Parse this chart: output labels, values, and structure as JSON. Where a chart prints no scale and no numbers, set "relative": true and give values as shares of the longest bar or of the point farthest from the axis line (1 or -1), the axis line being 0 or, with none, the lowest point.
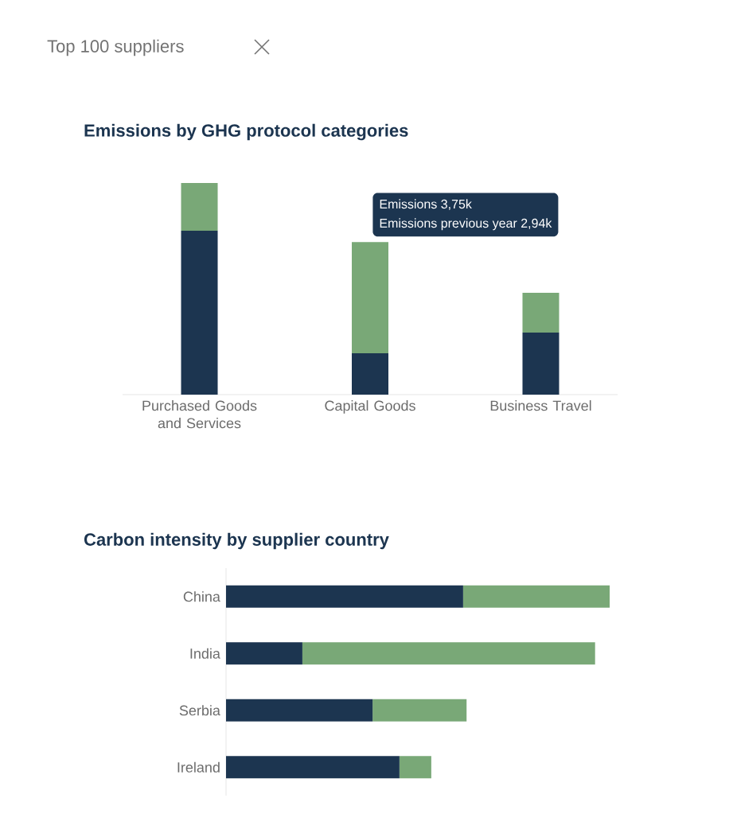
{
  "chart_data": [
    {
      "type": "bar",
      "title": "Emissions by GHG protocol categories",
      "stacked": true,
      "relative": true,
      "annotations": [
        "Top 100 suppliers",
        "Emissions 3,75k",
        "Emissions previous year 2,94k"
      ],
      "categories": [
        "Purchased Goods and Services",
        "Capital Goods",
        "Business Travel"
      ],
      "series": [
        {
          "color": "#1c3550",
          "values": [
            0.774,
            0.195,
            0.293
          ]
        },
        {
          "color": "#79a877",
          "values": [
            0.226,
            0.526,
            0.188
          ]
        }
      ]
    },
    {
      "type": "bar",
      "title": "Carbon intensity by supplier country",
      "stacked": true,
      "relative": true,
      "orientation": "horizontal",
      "categories": [
        "China",
        "India",
        "Serbia",
        "Ireland"
      ],
      "series": [
        {
          "color": "#1c3550",
          "values": [
            0.618,
            0.199,
            0.382,
            0.452
          ]
        },
        {
          "color": "#79a877",
          "values": [
            0.382,
            0.763,
            0.245,
            0.083
          ]
        }
      ]
    }
  ]
}
